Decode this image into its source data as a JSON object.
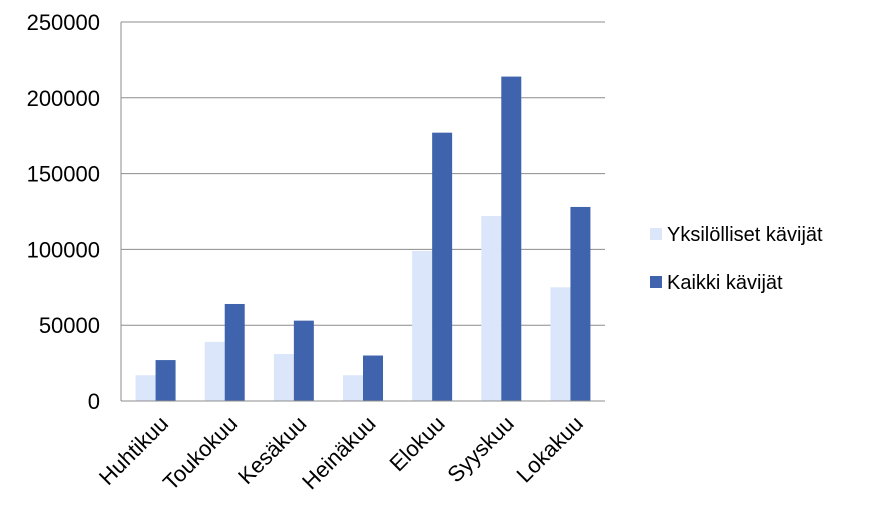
{
  "chart_data": {
    "type": "bar",
    "categories": [
      "Huhtikuu",
      "Toukokuu",
      "Kesäkuu",
      "Heinäkuu",
      "Elokuu",
      "Syyskuu",
      "Lokakuu"
    ],
    "series": [
      {
        "name": "Yksilölliset kävijät",
        "values": [
          17000,
          39000,
          31000,
          17000,
          99000,
          122000,
          75000
        ],
        "color": "#dce6fa"
      },
      {
        "name": "Kaikki kävijät",
        "values": [
          27000,
          64000,
          53000,
          30000,
          177000,
          214000,
          128000
        ],
        "color": "#3f64ad"
      }
    ],
    "ylim": [
      0,
      250000
    ],
    "yticks": [
      "0",
      "50000",
      "100000",
      "150000",
      "200000",
      "250000"
    ],
    "grid": true,
    "legend_position": "right"
  }
}
